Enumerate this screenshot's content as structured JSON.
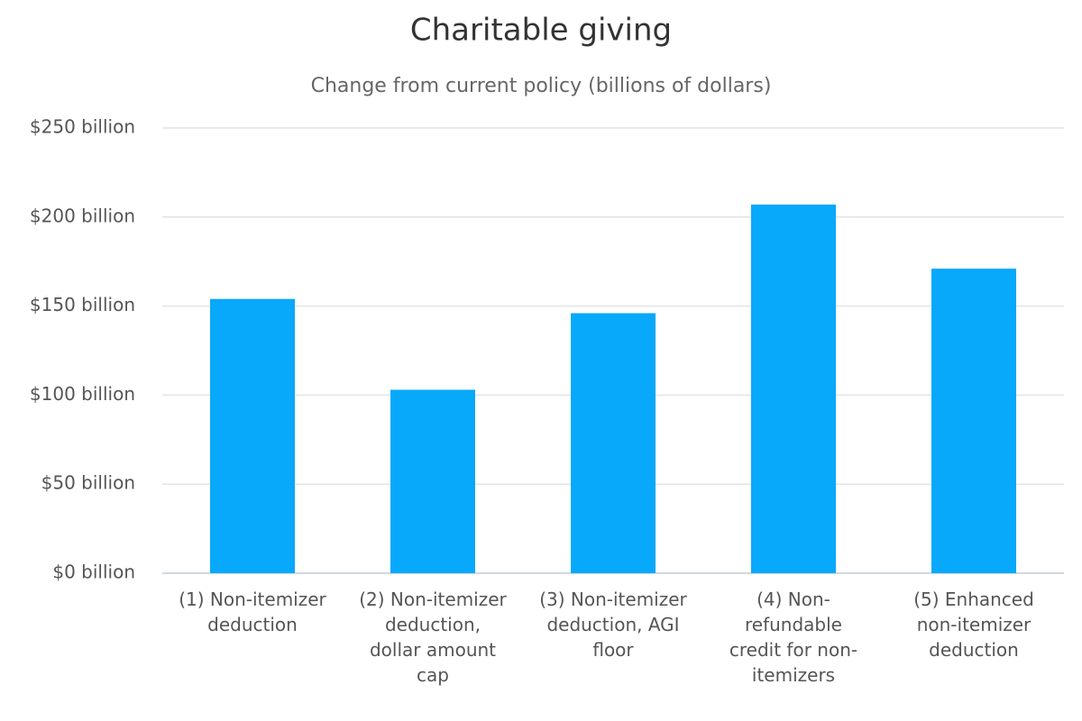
{
  "chart_data": {
    "type": "bar",
    "title": "Charitable giving",
    "subtitle": "Change from current policy (billions of dollars)",
    "categories": [
      "(1) Non-itemizer deduction",
      "(2) Non-itemizer deduction, dollar amount cap",
      "(3) Non-itemizer deduction, AGI floor",
      "(4) Non-refundable credit for non-itemizers",
      "(5) Enhanced non-itemizer deduction"
    ],
    "values": [
      154,
      103,
      146,
      207,
      171
    ],
    "color": "#08a8fb",
    "ylim": [
      0,
      250
    ],
    "yticks": [
      {
        "value": 0,
        "label": "$0 billion"
      },
      {
        "value": 50,
        "label": "$50 billion"
      },
      {
        "value": 100,
        "label": "$100 billion"
      },
      {
        "value": 150,
        "label": "$150 billion"
      },
      {
        "value": 200,
        "label": "$200 billion"
      },
      {
        "value": 250,
        "label": "$250 billion"
      }
    ],
    "grid": true
  }
}
